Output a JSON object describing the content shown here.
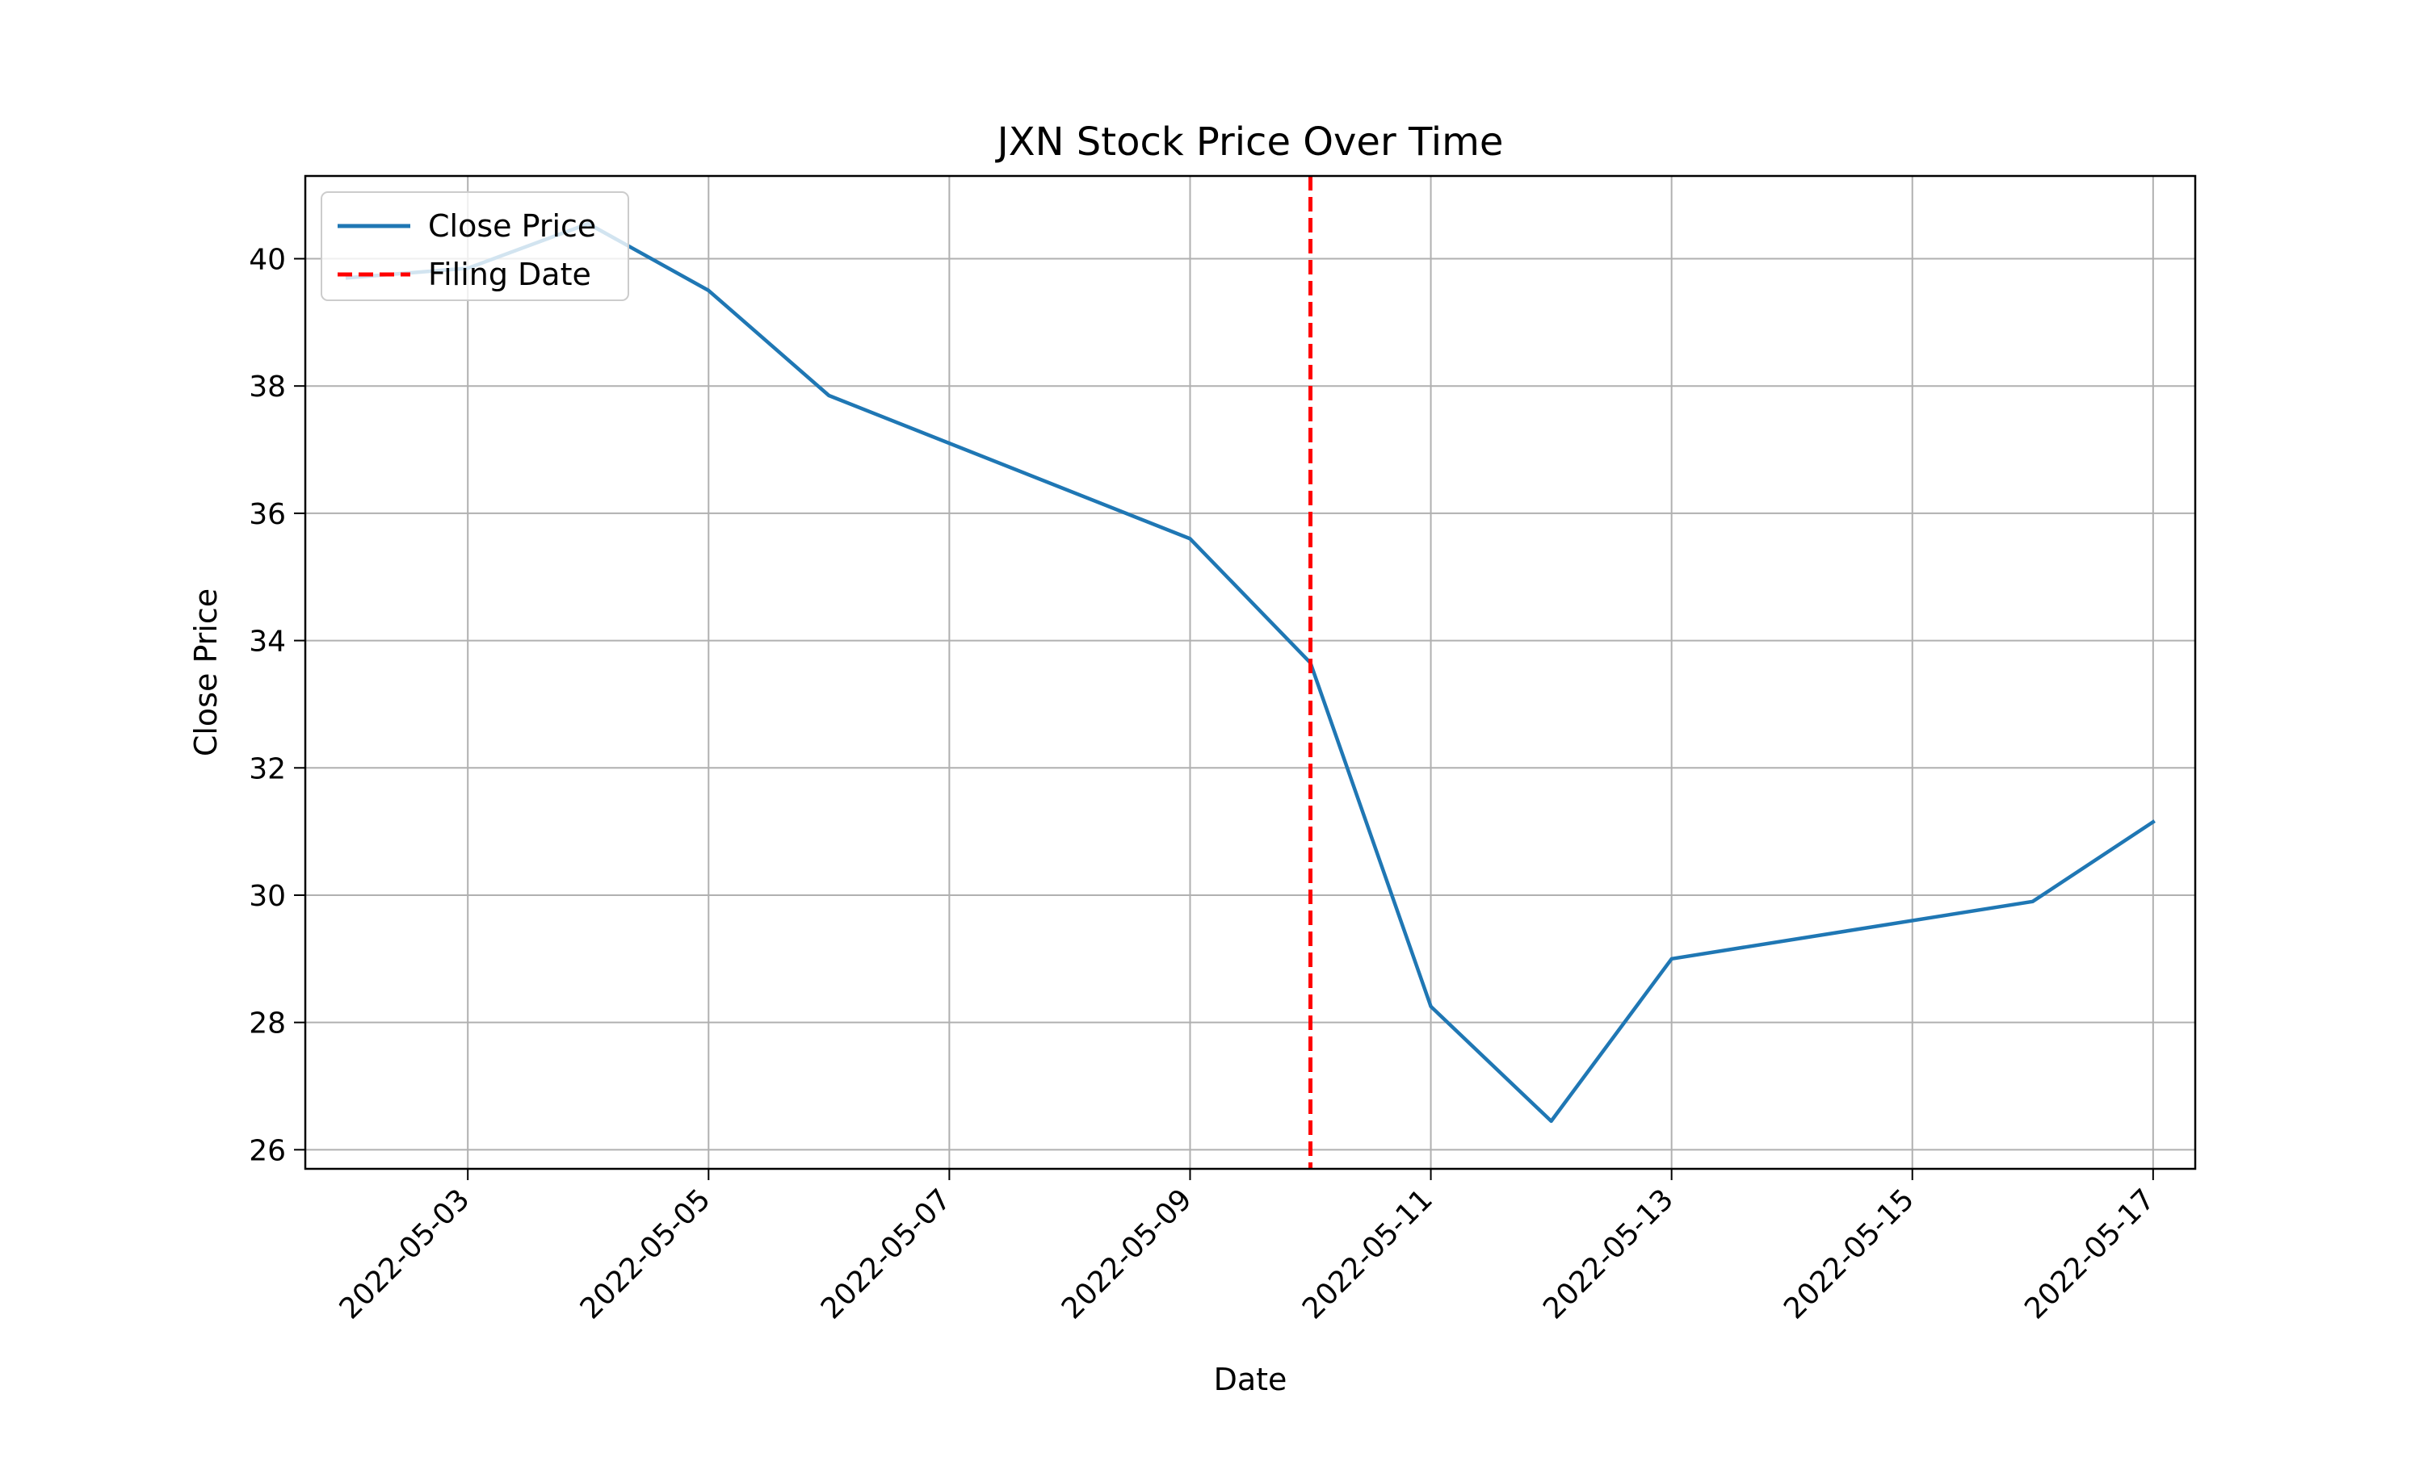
{
  "chart_data": {
    "type": "line",
    "title": "JXN Stock Price Over Time",
    "xlabel": "Date",
    "ylabel": "Close Price",
    "x_ticks": [
      "2022-05-03",
      "2022-05-05",
      "2022-05-07",
      "2022-05-09",
      "2022-05-11",
      "2022-05-13",
      "2022-05-15",
      "2022-05-17"
    ],
    "y_ticks": [
      26,
      28,
      30,
      32,
      34,
      36,
      38,
      40
    ],
    "xlim": [
      "2022-05-02",
      "2022-05-17"
    ],
    "ylim": [
      25.7,
      41.3
    ],
    "grid": true,
    "legend_position": "upper-left",
    "series": [
      {
        "name": "Close Price",
        "color": "#1f77b4",
        "style": "solid",
        "x": [
          "2022-05-02",
          "2022-05-03",
          "2022-05-04",
          "2022-05-05",
          "2022-05-06",
          "2022-05-09",
          "2022-05-10",
          "2022-05-11",
          "2022-05-12",
          "2022-05-13",
          "2022-05-16",
          "2022-05-17"
        ],
        "y": [
          39.7,
          39.85,
          40.55,
          39.5,
          37.85,
          35.6,
          33.65,
          28.25,
          26.45,
          29.0,
          29.9,
          31.15
        ]
      }
    ],
    "annotations": [
      {
        "name": "Filing Date",
        "type": "vline",
        "x": "2022-05-10",
        "color": "#ff0000",
        "style": "dashed"
      }
    ]
  }
}
